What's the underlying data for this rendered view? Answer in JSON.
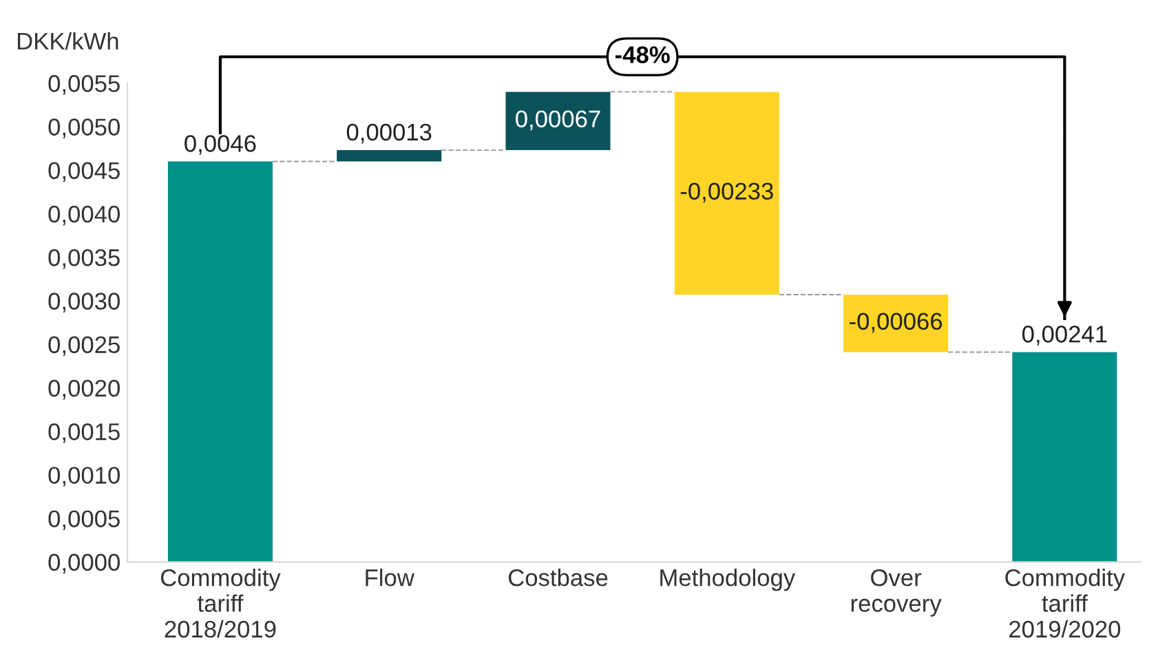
{
  "chart_data": {
    "type": "bar",
    "ylabel": "DKK/kWh",
    "categories": [
      "Commodity\ntariff\n2018/2019",
      "Flow",
      "Costbase",
      "Methodology",
      "Over\nrecovery",
      "Commodity\ntariff\n2019/2020"
    ],
    "values": [
      0.0046,
      0.00013,
      0.00067,
      -0.00233,
      -0.00066,
      0.00241
    ],
    "base": [
      0,
      0.0046,
      0.00473,
      0.0054,
      0.00307,
      0
    ],
    "colors": [
      "#00918a",
      "#0b525b",
      "#0b525b",
      "#ffd426",
      "#ffd426",
      "#00918a"
    ],
    "value_labels": [
      "0,0046",
      "0,00013",
      "0,00067",
      "-0,00233",
      "-0,00066",
      "0,00241"
    ],
    "ylim": [
      0,
      0.0055
    ],
    "yticks": [
      {
        "value": 0,
        "label": "0,0000"
      },
      {
        "value": 0.0005,
        "label": "0,0005"
      },
      {
        "value": 0.001,
        "label": "0,0010"
      },
      {
        "value": 0.0015,
        "label": "0,0015"
      },
      {
        "value": 0.002,
        "label": "0,0020"
      },
      {
        "value": 0.0025,
        "label": "0,0025"
      },
      {
        "value": 0.003,
        "label": "0,0030"
      },
      {
        "value": 0.0035,
        "label": "0,0035"
      },
      {
        "value": 0.004,
        "label": "0,0040"
      },
      {
        "value": 0.0045,
        "label": "0,0045"
      },
      {
        "value": 0.005,
        "label": "0,0050"
      },
      {
        "value": 0.0055,
        "label": "0,0055"
      }
    ],
    "annotations": [
      "-48%"
    ],
    "grid": false,
    "legend": false
  }
}
